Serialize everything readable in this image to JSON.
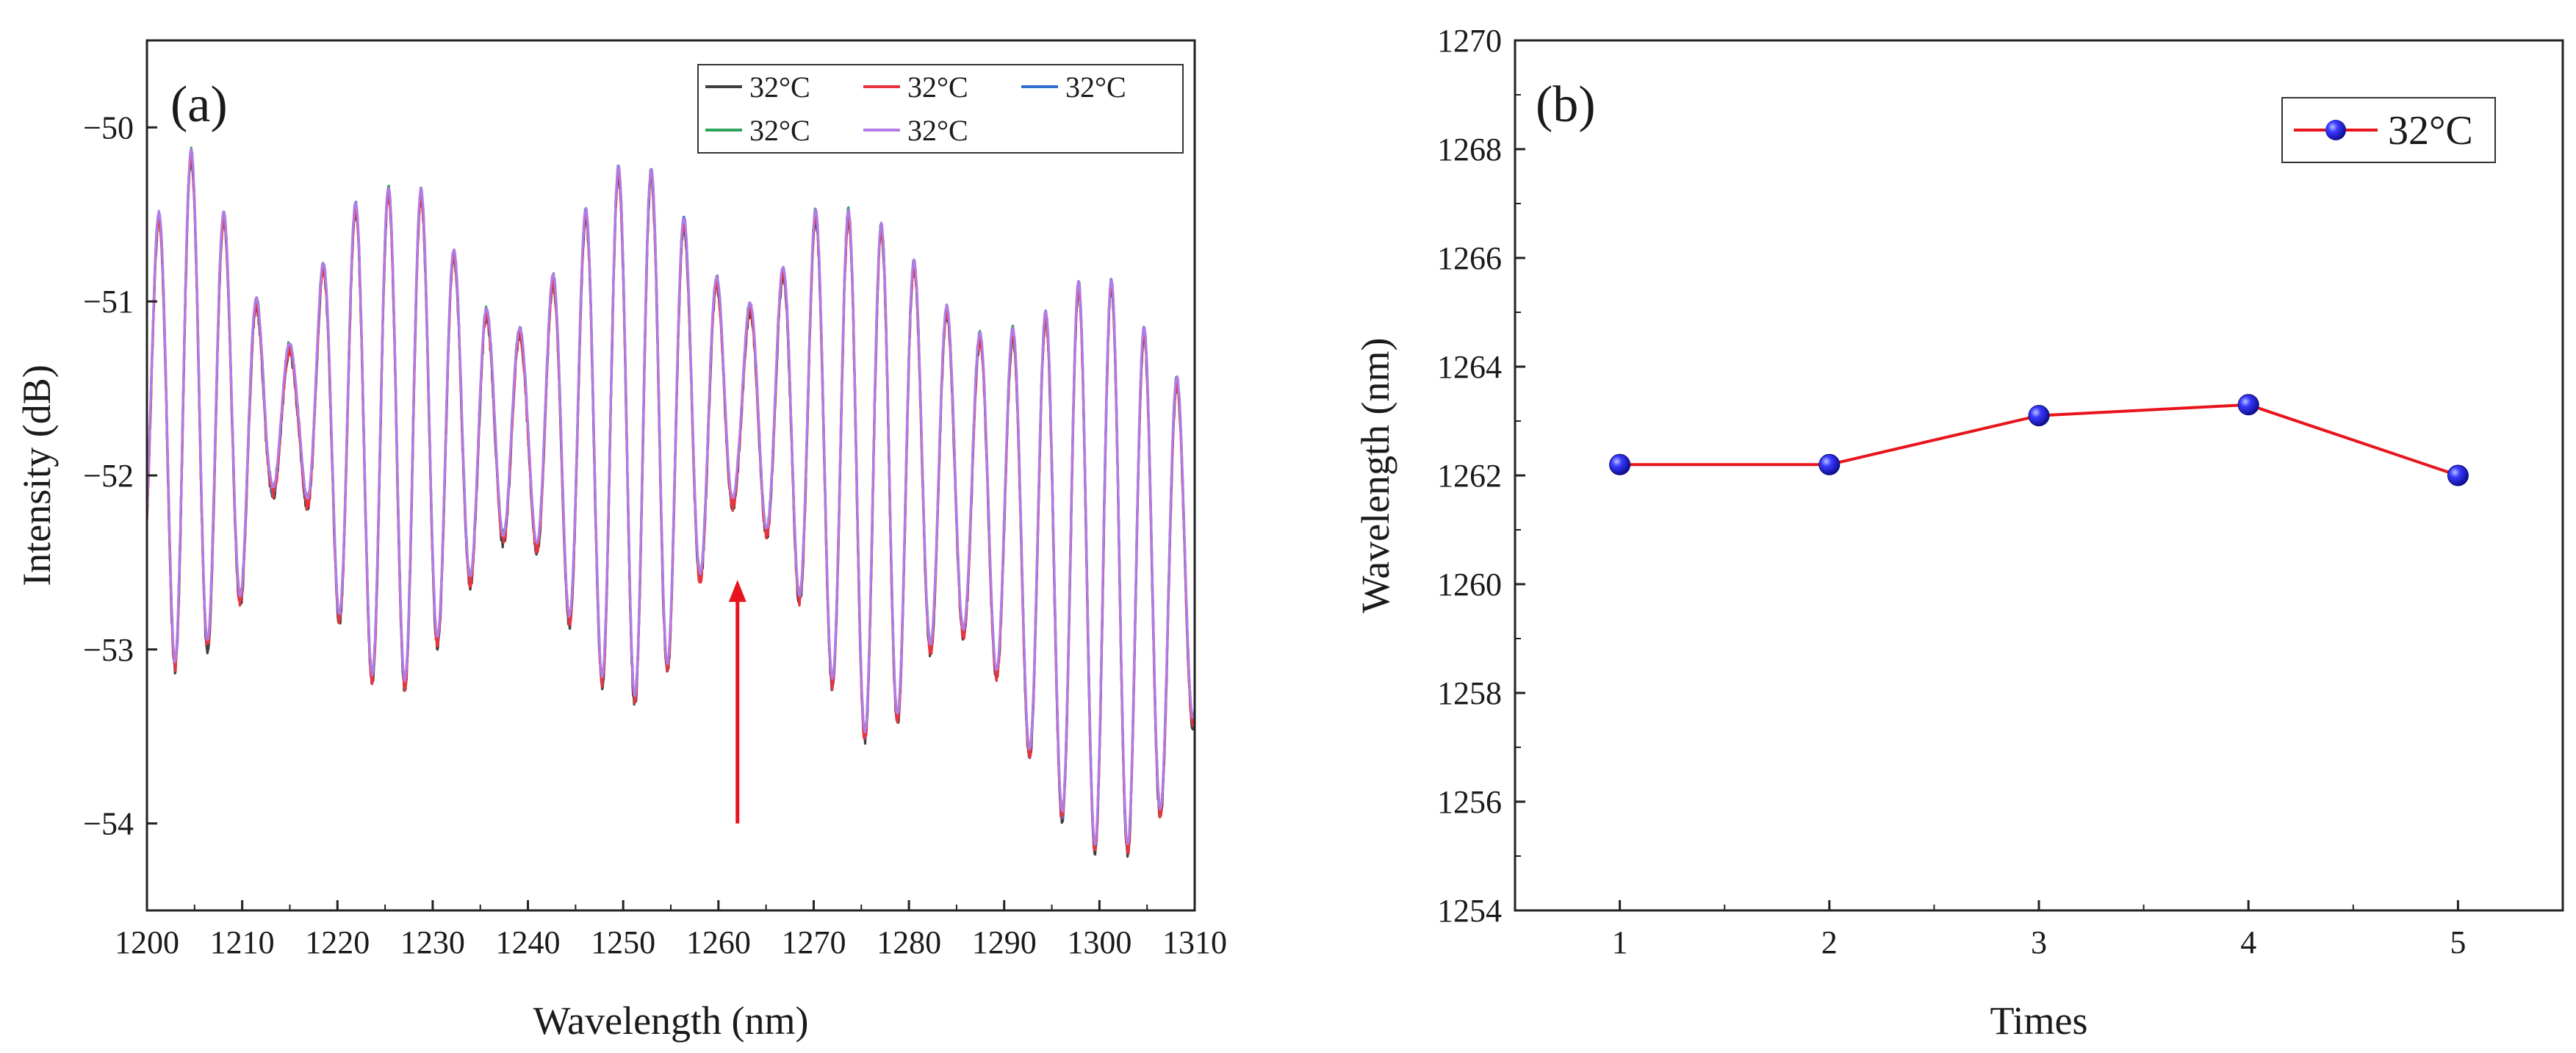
{
  "chart_data": [
    {
      "panel": "(a)",
      "type": "line",
      "xlabel": "Wavelength (nm)",
      "ylabel": "Intensity (dB)",
      "xlim": [
        1200,
        1310
      ],
      "ylim": [
        -54.5,
        -49.5
      ],
      "xticks": [
        1200,
        1210,
        1220,
        1230,
        1240,
        1250,
        1260,
        1270,
        1280,
        1290,
        1300,
        1310
      ],
      "yticks": [
        -54,
        -53,
        -52,
        -51,
        -50
      ],
      "xtick_labels": [
        "1200",
        "1210",
        "1220",
        "1230",
        "1240",
        "1250",
        "1260",
        "1270",
        "1280",
        "1290",
        "1300",
        "1310"
      ],
      "ytick_labels": [
        "−54",
        "−53",
        "−52",
        "−51",
        "−50"
      ],
      "fringe_period_nm": 3.45,
      "series": [
        {
          "name": "32°C",
          "color": "#404040"
        },
        {
          "name": "32°C",
          "color": "#e8343c"
        },
        {
          "name": "32°C",
          "color": "#2f6fd0"
        },
        {
          "name": "32°C",
          "color": "#2ea35a"
        },
        {
          "name": "32°C",
          "color": "#b27be6"
        }
      ],
      "envelope": {
        "x": [
          1200,
          1203,
          1206,
          1210,
          1213,
          1216,
          1220,
          1224,
          1228,
          1232,
          1236,
          1240,
          1244,
          1248,
          1251,
          1254,
          1258,
          1262,
          1266,
          1270,
          1274,
          1278,
          1282,
          1286,
          1290,
          1294,
          1298,
          1302,
          1306,
          1310
        ],
        "max": [
          -50.8,
          -50.1,
          -50.2,
          -50.8,
          -51.2,
          -51.3,
          -50.5,
          -50.4,
          -50.3,
          -50.7,
          -51.1,
          -51.2,
          -50.7,
          -50.3,
          -50.2,
          -50.3,
          -50.7,
          -51.1,
          -50.9,
          -50.5,
          -50.5,
          -50.6,
          -50.9,
          -51.2,
          -51.2,
          -51.1,
          -50.9,
          -50.9,
          -51.3,
          -51.6
        ],
        "min": [
          -52.6,
          -53.1,
          -53.0,
          -52.7,
          -52.1,
          -52.0,
          -52.8,
          -53.2,
          -53.2,
          -52.8,
          -52.4,
          -52.3,
          -52.8,
          -53.2,
          -53.3,
          -53.2,
          -52.6,
          -52.1,
          -52.4,
          -52.9,
          -53.5,
          -53.5,
          -53.0,
          -52.9,
          -53.2,
          -53.8,
          -54.1,
          -54.2,
          -54.0,
          -53.4
        ]
      },
      "annotation": {
        "type": "arrow",
        "color": "#e8141c",
        "x": 1262,
        "y_from": -54.0,
        "y_to": -52.6,
        "direction": "up"
      },
      "legend_position": "top-right"
    },
    {
      "panel": "(b)",
      "type": "line",
      "xlabel": "Times",
      "ylabel": "Wavelength (nm)",
      "xlim": [
        0.5,
        5.5
      ],
      "ylim": [
        1254,
        1270
      ],
      "xticks": [
        1,
        2,
        3,
        4,
        5
      ],
      "yticks": [
        1254,
        1256,
        1258,
        1260,
        1262,
        1264,
        1266,
        1268,
        1270
      ],
      "xtick_labels": [
        "1",
        "2",
        "3",
        "4",
        "5"
      ],
      "ytick_labels": [
        "1254",
        "1256",
        "1258",
        "1260",
        "1262",
        "1264",
        "1266",
        "1268",
        "1270"
      ],
      "series": [
        {
          "name": "32°C",
          "color": "#e8141c",
          "marker_color": "#1a1aee",
          "x": [
            1,
            2,
            3,
            4,
            5
          ],
          "values": [
            1262.2,
            1262.2,
            1263.1,
            1263.3,
            1262.0
          ]
        }
      ],
      "legend_position": "top-right"
    }
  ]
}
